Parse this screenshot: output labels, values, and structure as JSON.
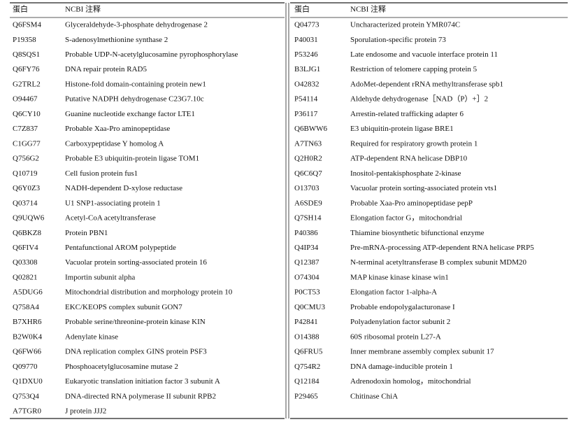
{
  "tables": [
    {
      "headers": [
        "蛋白",
        "NCBI 注释"
      ],
      "rows": [
        [
          "Q6FSM4",
          "Glyceraldehyde-3-phosphate dehydrogenase 2"
        ],
        [
          "P19358",
          "S-adenosylmethionine synthase 2"
        ],
        [
          "Q8SQS1",
          "Probable UDP-N-acetylglucosamine pyrophosphorylase"
        ],
        [
          "Q6FY76",
          "DNA repair protein RAD5"
        ],
        [
          "G2TRL2",
          "Histone-fold domain-containing protein new1"
        ],
        [
          "O94467",
          "Putative NADPH dehydrogenase C23G7.10c"
        ],
        [
          "Q6CY10",
          "Guanine nucleotide exchange factor LTE1"
        ],
        [
          "C7Z837",
          "Probable Xaa-Pro aminopeptidase"
        ],
        [
          "C1GG77",
          "Carboxypeptidase Y homolog A"
        ],
        [
          "Q756G2",
          "Probable E3 ubiquitin-protein ligase TOM1"
        ],
        [
          "Q10719",
          "Cell fusion protein fus1"
        ],
        [
          "Q6Y0Z3",
          "NADH-dependent D-xylose reductase"
        ],
        [
          "Q03714",
          "U1 SNP1-associating protein 1"
        ],
        [
          "Q9UQW6",
          "Acetyl-CoA acetyltransferase"
        ],
        [
          "Q6BKZ8",
          "Protein PBN1"
        ],
        [
          "Q6FIV4",
          "Pentafunctional AROM polypeptide"
        ],
        [
          "Q03308",
          "Vacuolar protein sorting-associated protein 16"
        ],
        [
          "Q02821",
          "Importin subunit alpha"
        ],
        [
          "A5DUG6",
          "Mitochondrial distribution and morphology protein 10"
        ],
        [
          "Q758A4",
          "EKC/KEOPS complex subunit GON7"
        ],
        [
          "B7XHR6",
          "Probable serine/threonine-protein kinase KIN"
        ],
        [
          "B2W0K4",
          "Adenylate kinase"
        ],
        [
          "Q6FW66",
          "DNA replication complex GINS protein PSF3"
        ],
        [
          "Q09770",
          "Phosphoacetylglucosamine mutase 2"
        ],
        [
          "Q1DXU0",
          "Eukaryotic translation initiation factor 3 subunit A"
        ],
        [
          "Q753Q4",
          "DNA-directed RNA polymerase II subunit RPB2"
        ],
        [
          "A7TGR0",
          "J protein JJJ2"
        ]
      ]
    },
    {
      "headers": [
        "蛋白",
        "NCBI 注释"
      ],
      "rows": [
        [
          "Q04773",
          "Uncharacterized protein YMR074C"
        ],
        [
          "P40031",
          "Sporulation-specific protein 73"
        ],
        [
          "P53246",
          "Late endosome and vacuole interface protein 11"
        ],
        [
          "B3LJG1",
          "Restriction of telomere capping protein 5"
        ],
        [
          "O42832",
          "AdoMet-dependent rRNA methyltransferase spb1"
        ],
        [
          "P54114",
          "Aldehyde dehydrogenase［NAD（P）+］2"
        ],
        [
          "P36117",
          "Arrestin-related trafficking adapter 6"
        ],
        [
          "Q6BWW6",
          "E3 ubiquitin-protein ligase BRE1"
        ],
        [
          "A7TN63",
          "Required for respiratory growth protein 1"
        ],
        [
          "Q2H0R2",
          "ATP-dependent RNA helicase DBP10"
        ],
        [
          "Q6C6Q7",
          "Inositol-pentakisphosphate 2-kinase"
        ],
        [
          "O13703",
          "Vacuolar protein sorting-associated protein vts1"
        ],
        [
          "A6SDE9",
          "Probable Xaa-Pro aminopeptidase pepP"
        ],
        [
          "Q7SH14",
          "Elongation factor G，mitochondrial"
        ],
        [
          "P40386",
          "Thiamine biosynthetic bifunctional enzyme"
        ],
        [
          "Q4IP34",
          "Pre-mRNA-processing ATP-dependent RNA helicase PRP5"
        ],
        [
          "Q12387",
          "N-terminal acetyltransferase B complex subunit MDM20"
        ],
        [
          "O74304",
          "MAP kinase kinase kinase win1"
        ],
        [
          "P0CT53",
          "Elongation factor 1-alpha-A"
        ],
        [
          "Q0CMU3",
          "Probable endopolygalacturonase I"
        ],
        [
          "P42841",
          "Polyadenylation factor subunit 2"
        ],
        [
          "O14388",
          "60S ribosomal protein L27-A"
        ],
        [
          "Q6FRU5",
          "Inner membrane assembly complex subunit 17"
        ],
        [
          "Q754R2",
          "DNA damage-inducible protein 1"
        ],
        [
          "Q12184",
          "Adrenodoxin homolog，mitochondrial"
        ],
        [
          "P29465",
          "Chitinase ChiA"
        ]
      ]
    }
  ]
}
